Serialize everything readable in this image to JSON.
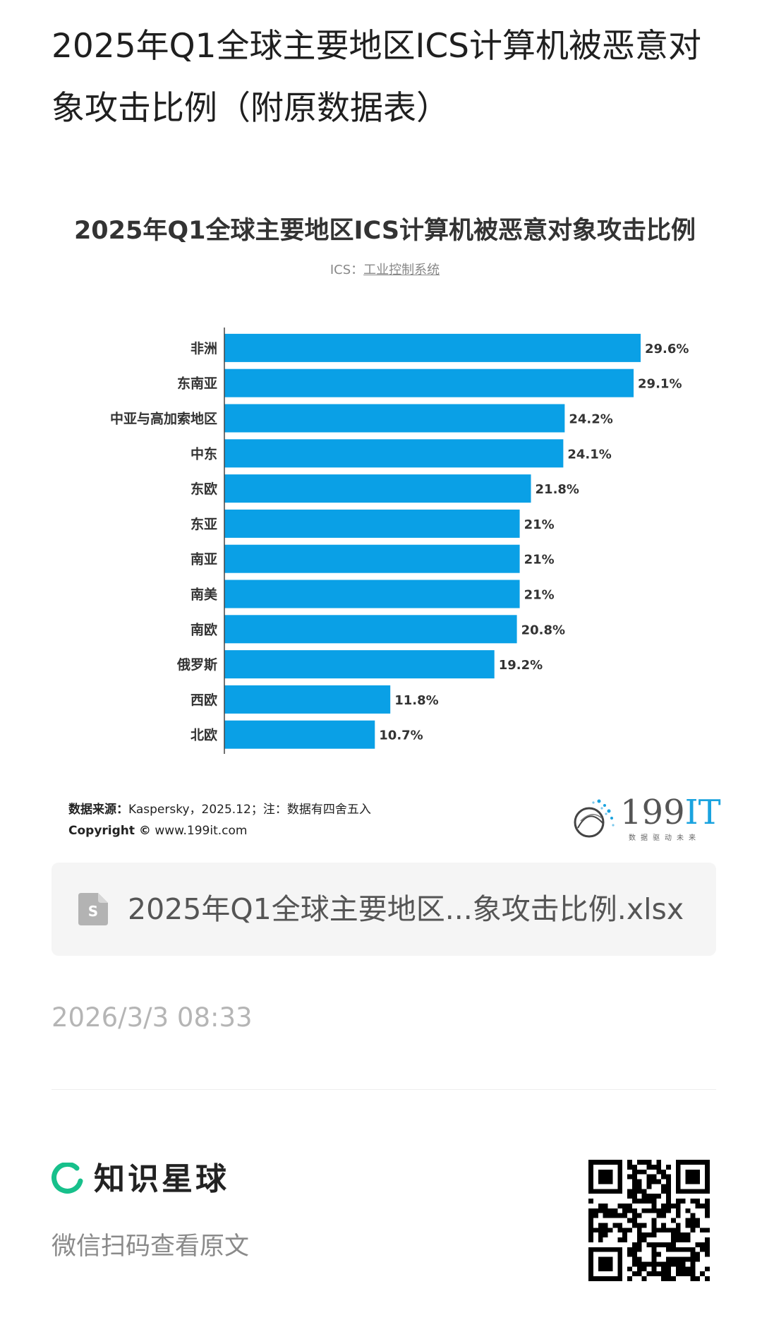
{
  "post": {
    "title": "2025年Q1全球主要地区ICS计算机被恶意对象攻击比例（附原数据表）",
    "timestamp": "2026/3/3 08:33"
  },
  "chart_card": {
    "subtitle_prefix": "ICS：",
    "subtitle_term": "工业控制系统",
    "source_label": "数据来源：",
    "source_text": "Kaspersky，2025.12；注：数据有四舍五入",
    "copyright_label": "Copyright ©",
    "copyright_text": "www.199it.com",
    "logo_number": "199",
    "logo_it": "IT",
    "logo_slogan": "数据驱动未来"
  },
  "chart_data": {
    "type": "bar",
    "orientation": "horizontal",
    "title": "2025年Q1全球主要地区ICS计算机被恶意对象攻击比例",
    "categories": [
      "非洲",
      "东南亚",
      "中亚与高加索地区",
      "中东",
      "东欧",
      "东亚",
      "南亚",
      "南美",
      "南欧",
      "俄罗斯",
      "西欧",
      "北欧"
    ],
    "values": [
      29.6,
      29.1,
      24.2,
      24.1,
      21.8,
      21,
      21,
      21,
      20.8,
      19.2,
      11.8,
      10.7
    ],
    "value_labels": [
      "29.6%",
      "29.1%",
      "24.2%",
      "24.1%",
      "21.8%",
      "21%",
      "21%",
      "21%",
      "20.8%",
      "19.2%",
      "11.8%",
      "10.7%"
    ],
    "x_ticks": [
      0,
      5,
      10,
      15,
      20,
      25,
      29.6
    ],
    "x_tick_labels": [
      "0%",
      "5%",
      "10%",
      "15%",
      "20%",
      "25%",
      "29.6%"
    ],
    "xlim": [
      0,
      29.6
    ],
    "xlabel": "",
    "ylabel": "",
    "grid": false,
    "bar_color": "#0aa0e6"
  },
  "attachment": {
    "file_name": "2025年Q1全球主要地区...象攻击比例.xlsx",
    "icon": "spreadsheet-file-icon"
  },
  "footer": {
    "brand_name": "知识星球",
    "brand_icon": "zsxq-logo-icon",
    "caption": "微信扫码查看原文",
    "brand_color": "#17c08b",
    "qr_icon": "qr-code-icon"
  }
}
